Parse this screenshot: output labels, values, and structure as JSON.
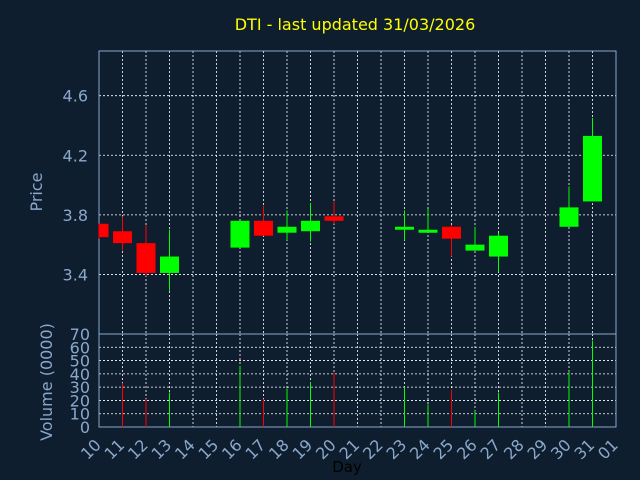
{
  "chart_data": {
    "type": "candlestick",
    "title": "DTI - last updated 31/03/2026",
    "xlabel": "Day",
    "ylabel": "Price",
    "volume_label": "Volume (0000)",
    "x_ticks": [
      "10",
      "11",
      "12",
      "13",
      "14",
      "15",
      "16",
      "17",
      "18",
      "19",
      "20",
      "21",
      "22",
      "23",
      "24",
      "25",
      "26",
      "27",
      "28",
      "29",
      "30",
      "31",
      "01"
    ],
    "price_ylim": [
      3.0,
      4.9
    ],
    "price_ticks": [
      3.4,
      3.8,
      4.2,
      4.6
    ],
    "price_tick_labels": [
      "3.4",
      "3.8",
      "4.2",
      "4.6"
    ],
    "volume_ylim": [
      0,
      70
    ],
    "volume_ticks": [
      0,
      10,
      20,
      30,
      40,
      50,
      60,
      70
    ],
    "volume_tick_labels": [
      "0",
      "10",
      "20",
      "30",
      "40",
      "50",
      "60",
      "70"
    ],
    "grid": true,
    "colors": {
      "up": "#00ff00",
      "down": "#ff0000",
      "background": "#0f1e2e",
      "title": "#ffff00",
      "axis_text": "#8aa8cc",
      "grid": "#ffffff"
    },
    "candles": [
      {
        "day": "10",
        "open": 3.74,
        "high": 3.74,
        "low": 3.64,
        "close": 3.65
      },
      {
        "day": "11",
        "open": 3.69,
        "high": 3.79,
        "low": 3.56,
        "close": 3.61
      },
      {
        "day": "12",
        "open": 3.61,
        "high": 3.73,
        "low": 3.39,
        "close": 3.41
      },
      {
        "day": "13",
        "open": 3.41,
        "high": 3.7,
        "low": 3.29,
        "close": 3.52
      },
      {
        "day": "16",
        "open": 3.58,
        "high": 3.76,
        "low": 3.58,
        "close": 3.76
      },
      {
        "day": "17",
        "open": 3.76,
        "high": 3.86,
        "low": 3.66,
        "close": 3.66
      },
      {
        "day": "18",
        "open": 3.68,
        "high": 3.83,
        "low": 3.63,
        "close": 3.72
      },
      {
        "day": "19",
        "open": 3.69,
        "high": 3.88,
        "low": 3.62,
        "close": 3.76
      },
      {
        "day": "20",
        "open": 3.79,
        "high": 3.89,
        "low": 3.74,
        "close": 3.76
      },
      {
        "day": "23",
        "open": 3.7,
        "high": 3.83,
        "low": 3.63,
        "close": 3.72
      },
      {
        "day": "24",
        "open": 3.69,
        "high": 3.84,
        "low": 3.69,
        "close": 3.7
      },
      {
        "day": "25",
        "open": 3.72,
        "high": 3.73,
        "low": 3.52,
        "close": 3.64
      },
      {
        "day": "26",
        "open": 3.56,
        "high": 3.72,
        "low": 3.56,
        "close": 3.6
      },
      {
        "day": "27",
        "open": 3.52,
        "high": 3.68,
        "low": 3.42,
        "close": 3.66
      },
      {
        "day": "30",
        "open": 3.72,
        "high": 3.99,
        "low": 3.72,
        "close": 3.85
      },
      {
        "day": "31",
        "open": 3.89,
        "high": 4.45,
        "low": 3.89,
        "close": 4.33
      }
    ],
    "volume": [
      {
        "day": "11",
        "value": 33,
        "direction": "down"
      },
      {
        "day": "12",
        "value": 21,
        "direction": "down"
      },
      {
        "day": "13",
        "value": 26,
        "direction": "up"
      },
      {
        "day": "16",
        "value": 46,
        "direction": "up"
      },
      {
        "day": "17",
        "value": 21,
        "direction": "down"
      },
      {
        "day": "18",
        "value": 29,
        "direction": "up"
      },
      {
        "day": "19",
        "value": 34,
        "direction": "up"
      },
      {
        "day": "20",
        "value": 41,
        "direction": "down"
      },
      {
        "day": "23",
        "value": 30,
        "direction": "up"
      },
      {
        "day": "24",
        "value": 17,
        "direction": "up"
      },
      {
        "day": "25",
        "value": 28,
        "direction": "down"
      },
      {
        "day": "26",
        "value": 12,
        "direction": "up"
      },
      {
        "day": "27",
        "value": 26,
        "direction": "up"
      },
      {
        "day": "30",
        "value": 42,
        "direction": "up"
      },
      {
        "day": "31",
        "value": 65,
        "direction": "up"
      }
    ]
  }
}
